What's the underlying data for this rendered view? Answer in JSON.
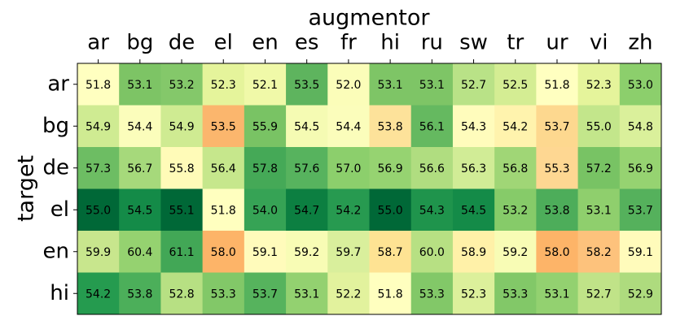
{
  "chart_data": {
    "type": "heatmap",
    "x_label": "augmentor",
    "y_label": "target",
    "x_categories": [
      "ar",
      "bg",
      "de",
      "el",
      "en",
      "es",
      "fr",
      "hi",
      "ru",
      "sw",
      "tr",
      "ur",
      "vi",
      "zh"
    ],
    "y_categories": [
      "ar",
      "bg",
      "de",
      "el",
      "en",
      "hi"
    ],
    "values": [
      [
        51.8,
        53.1,
        53.2,
        52.3,
        52.1,
        53.5,
        52.0,
        53.1,
        53.1,
        52.7,
        52.5,
        51.8,
        52.3,
        53.0
      ],
      [
        54.9,
        54.4,
        54.9,
        53.5,
        55.9,
        54.5,
        54.4,
        53.8,
        56.1,
        54.3,
        54.2,
        53.7,
        55.0,
        54.8
      ],
      [
        57.3,
        56.7,
        55.8,
        56.4,
        57.8,
        57.6,
        57.0,
        56.9,
        56.6,
        56.3,
        56.8,
        55.3,
        57.2,
        56.9
      ],
      [
        55.0,
        54.5,
        55.1,
        51.8,
        54.0,
        54.7,
        54.2,
        55.0,
        54.3,
        54.5,
        53.2,
        53.8,
        53.1,
        53.7
      ],
      [
        59.9,
        60.4,
        61.1,
        58.0,
        59.1,
        59.2,
        59.7,
        58.7,
        60.0,
        58.9,
        59.2,
        58.0,
        58.2,
        59.1
      ],
      [
        54.2,
        53.8,
        52.8,
        53.3,
        53.7,
        53.1,
        52.2,
        51.8,
        53.3,
        52.3,
        53.3,
        53.1,
        52.7,
        52.9
      ]
    ],
    "value_labels": [
      [
        "51.8",
        "53.1",
        "53.2",
        "52.3",
        "52.1",
        "53.5",
        "52.0",
        "53.1",
        "53.1",
        "52.7",
        "52.5",
        "51.8",
        "52.3",
        "53.0"
      ],
      [
        "54.9",
        "54.4",
        "54.9",
        "53.5",
        "55.9",
        "54.5",
        "54.4",
        "53.8",
        "56.1",
        "54.3",
        "54.2",
        "53.7",
        "55.0",
        "54.8"
      ],
      [
        "57.3",
        "56.7",
        "55.8",
        "56.4",
        "57.8",
        "57.6",
        "57.0",
        "56.9",
        "56.6",
        "56.3",
        "56.8",
        "55.3",
        "57.2",
        "56.9"
      ],
      [
        "55.0",
        "54.5",
        "55.1",
        "51.8",
        "54.0",
        "54.7",
        "54.2",
        "55.0",
        "54.3",
        "54.5",
        "53.2",
        "53.8",
        "53.1",
        "53.7"
      ],
      [
        "59.9",
        "60.4",
        "61.1",
        "58.0",
        "59.1",
        "59.2",
        "59.7",
        "58.7",
        "60.0",
        "58.9",
        "59.2",
        "58.0",
        "58.2",
        "59.1"
      ],
      [
        "54.2",
        "53.8",
        "52.8",
        "53.3",
        "53.7",
        "53.1",
        "52.2",
        "51.8",
        "53.3",
        "52.3",
        "53.3",
        "53.1",
        "52.7",
        "52.9"
      ]
    ],
    "colors": [
      [
        "#ffffc0",
        "#7dc465",
        "#84c86a",
        "#e5f49b",
        "#f0f9a8",
        "#5eb45e",
        "#fbfdb9",
        "#7ec566",
        "#7ec566",
        "#b9e287",
        "#d4ed93",
        "#ffffc0",
        "#e5f49b",
        "#8ccf6c"
      ],
      [
        "#cfeb92",
        "#fbfdbb",
        "#cfeb92",
        "#fbb66d",
        "#79c364",
        "#f5fbb3",
        "#fbfdbb",
        "#fde29a",
        "#65b960",
        "#fffcbc",
        "#fff3ad",
        "#fdd88f",
        "#c3e68b",
        "#daf09b"
      ],
      [
        "#6dbd63",
        "#a6d97b",
        "#fffbb8",
        "#c6e78c",
        "#45a957",
        "#57b35e",
        "#8ccf6c",
        "#96d371",
        "#b0dd80",
        "#d1ec96",
        "#a0d676",
        "#fed792",
        "#78c364",
        "#96d371"
      ],
      [
        "#006837",
        "#148b48",
        "#006837",
        "#ffffbf",
        "#36a355",
        "#0c7f41",
        "#279a50",
        "#006837",
        "#1f944c",
        "#148b48",
        "#86cb69",
        "#4dad5a",
        "#8fcf6d",
        "#55b15c"
      ],
      [
        "#c8e68d",
        "#95d270",
        "#42a756",
        "#fdb468",
        "#fffbbb",
        "#f8fcb5",
        "#d9ef9c",
        "#fee393",
        "#b7e083",
        "#fff1a8",
        "#f8fcb5",
        "#fdb468",
        "#fdc27c",
        "#fffbbb"
      ],
      [
        "#259b4f",
        "#4caf5a",
        "#b7e083",
        "#82c868",
        "#56b35d",
        "#93d170",
        "#e2f29d",
        "#ffffbf",
        "#82c868",
        "#dcf09b",
        "#82c868",
        "#93d170",
        "#c0e388",
        "#aedb7e"
      ]
    ]
  }
}
